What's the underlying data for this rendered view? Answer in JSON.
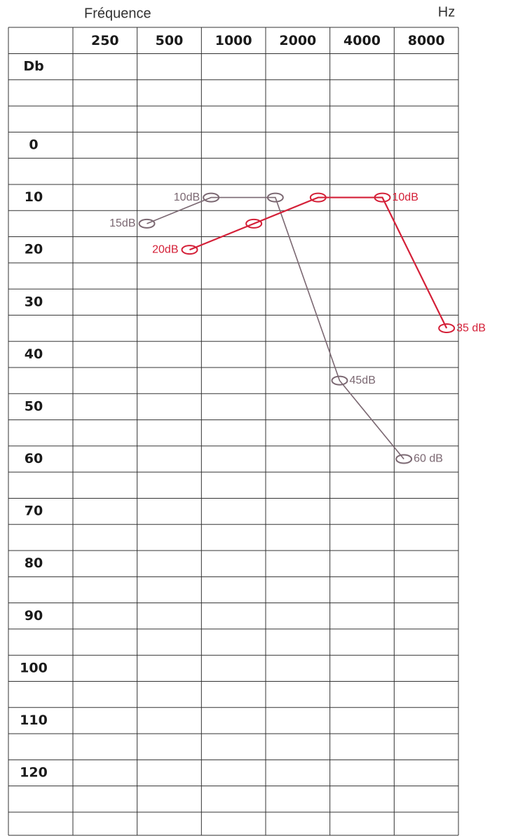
{
  "chart_data": {
    "type": "line",
    "x_label": "Fréquence",
    "unit": "Hz",
    "y_label": "Db",
    "categories": [
      "250",
      "500",
      "1000",
      "2000",
      "4000",
      "8000"
    ],
    "ylim": [
      0,
      120
    ],
    "yticks": [
      0,
      10,
      20,
      30,
      40,
      50,
      60,
      70,
      80,
      90,
      100,
      110,
      120
    ],
    "series": [
      {
        "color": "#7b6872",
        "values": [
          null,
          15,
          10,
          10,
          45,
          60
        ],
        "value_labels": [
          null,
          "15dB",
          "10dB",
          null,
          "45dB",
          "60 dB"
        ]
      },
      {
        "color": "#d42038",
        "values": [
          null,
          20,
          15,
          10,
          10,
          35
        ],
        "value_labels": [
          null,
          "20dB",
          null,
          null,
          "10dB",
          "35 dB"
        ]
      }
    ]
  }
}
